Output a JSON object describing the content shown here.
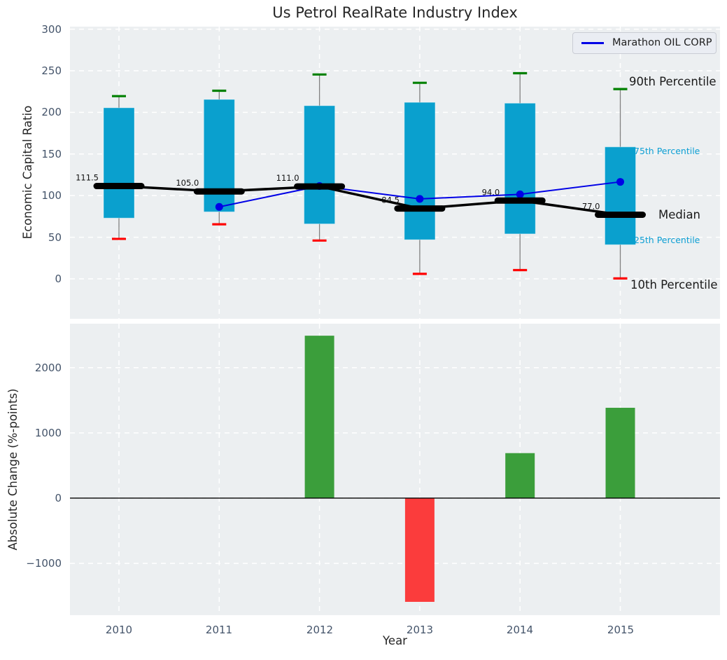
{
  "title": "Us Petrol RealRate Industry Index",
  "legend": {
    "label": "Marathon OIL CORP"
  },
  "top_chart": {
    "ylabel": "Economic Capital Ratio",
    "ytick_labels": [
      "300",
      "250",
      "200",
      "150",
      "100",
      "50",
      "0"
    ],
    "annotations": [
      {
        "text": "90th Percentile"
      },
      {
        "text": "75th Percentile"
      },
      {
        "text": "Median"
      },
      {
        "text": "25th Percentile"
      },
      {
        "text": "10th Percentile"
      }
    ]
  },
  "bottom_chart": {
    "ylabel": "Absolute Change (%-points)",
    "xlabel": "Year",
    "ytick_labels": [
      "2000",
      "1000",
      "0",
      "−1000"
    ],
    "xtick_labels": [
      "2010",
      "2011",
      "2012",
      "2013",
      "2014",
      "2015"
    ]
  },
  "chart_data": [
    {
      "type": "box",
      "title": "Us Petrol RealRate Industry Index",
      "ylabel": "Economic Capital Ratio",
      "categories": [
        2010,
        2011,
        2012,
        2013,
        2014,
        2015
      ],
      "whisker_high_90th": [
        219.5,
        226,
        245.5,
        235.5,
        247,
        228
      ],
      "box_top_75th": [
        205.5,
        215.5,
        208,
        212,
        211,
        158.5
      ],
      "median": [
        111.5,
        105.0,
        111.0,
        84.5,
        94.0,
        77.0
      ],
      "median_labels": [
        "111.5",
        "105.0",
        "111.0",
        "84.5",
        "94.0",
        "77.0"
      ],
      "box_bottom_25th": [
        73,
        80.5,
        66,
        47,
        54,
        41
      ],
      "whisker_low_10th": [
        48,
        65.5,
        46,
        6,
        10.5,
        0.5
      ],
      "series": [
        {
          "name": "Marathon OIL CORP",
          "x": [
            2011,
            2012,
            2013,
            2014,
            2015
          ],
          "values": [
            86.5,
            111.5,
            96,
            101.5,
            116.5
          ]
        }
      ],
      "ylim": [
        -48,
        303
      ],
      "yticks": [
        0,
        50,
        100,
        150,
        200,
        250,
        300
      ],
      "grid": true,
      "legend_position": "upper right"
    },
    {
      "type": "bar",
      "ylabel": "Absolute Change (%-points)",
      "xlabel": "Year",
      "categories": [
        2010,
        2011,
        2012,
        2013,
        2014,
        2015
      ],
      "values": [
        null,
        null,
        2490,
        -1590,
        690,
        1385
      ],
      "bar_colors": [
        null,
        null,
        "green",
        "red",
        "green",
        "green"
      ],
      "ylim": [
        -1794,
        2674
      ],
      "yticks": [
        -1000,
        0,
        1000,
        2000
      ],
      "grid": true
    }
  ],
  "colors": {
    "axes_bg": "#eceff1",
    "grid": "#ffffff",
    "box_fill": "#0aa0ce",
    "whisker_line": "#808080",
    "cap_high": "#008000",
    "cap_low": "#ff0000",
    "median": "#000000",
    "company_line": "#0000e6",
    "bar_green": "#3b9e3b",
    "bar_red": "#fb3c3c",
    "tick_text": "#44546a",
    "annotation_blue": "#0d9fd4",
    "annotation_dark": "#1a1a1a"
  }
}
